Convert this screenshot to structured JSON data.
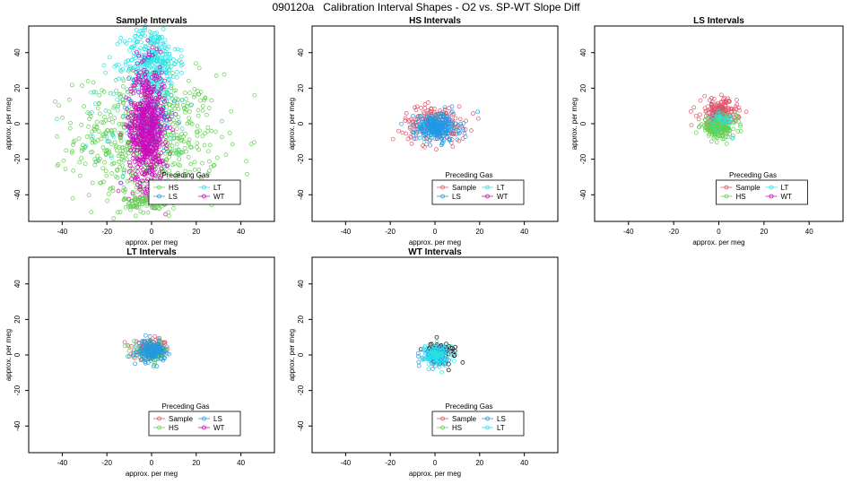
{
  "figure": {
    "title": "090120a   Calibration Interval Shapes - O2 vs. SP-WT Slope Diff"
  },
  "colors": {
    "Sample": "#DF536B",
    "HS": "#61D04F",
    "LS": "#2297E6",
    "LT": "#28E2E5",
    "WT": "#CD0BBC",
    "self": "#000000"
  },
  "chart_data": [
    {
      "type": "scatter",
      "title": "Sample Intervals",
      "xlabel": "approx. per meg",
      "ylabel": "approx. per meg",
      "xlim": [
        -55,
        55
      ],
      "ylim": [
        -55,
        55
      ],
      "xticks": [
        -40,
        -20,
        0,
        20,
        40
      ],
      "yticks": [
        -40,
        -20,
        0,
        20,
        40
      ],
      "legend": {
        "title": "Preceding Gas",
        "position": "bottom-center",
        "entries": [
          "HS",
          "LT",
          "LS",
          "WT"
        ]
      },
      "series": [
        {
          "name": "HS",
          "n": 650,
          "cx": -2,
          "cy": -8,
          "sx": 16,
          "sy": 18
        },
        {
          "name": "LS",
          "n": 80,
          "cx": 0,
          "cy": 0,
          "sx": 5,
          "sy": 8
        },
        {
          "name": "LT",
          "n": 350,
          "cx": 0,
          "cy": 35,
          "sx": 6,
          "sy": 10
        },
        {
          "name": "LT",
          "n": 60,
          "cx": -5,
          "cy": 5,
          "sx": 14,
          "sy": 18
        },
        {
          "name": "WT",
          "n": 700,
          "cx": -2,
          "cy": -2,
          "sx": 4,
          "sy": 17
        },
        {
          "name": "HS",
          "n": 120,
          "cx": 0,
          "cy": -44,
          "sx": 6,
          "sy": 3
        }
      ]
    },
    {
      "type": "scatter",
      "title": "HS Intervals",
      "xlabel": "approx. per meg",
      "ylabel": "approx. per meg",
      "xlim": [
        -55,
        55
      ],
      "ylim": [
        -55,
        55
      ],
      "xticks": [
        -40,
        -20,
        0,
        20,
        40
      ],
      "yticks": [
        -40,
        -20,
        0,
        20,
        40
      ],
      "legend": {
        "title": "Preceding Gas",
        "position": "bottom-center",
        "entries": [
          "Sample",
          "LT",
          "LS",
          "WT"
        ]
      },
      "series": [
        {
          "name": "Sample",
          "n": 220,
          "cx": 0,
          "cy": 0,
          "sx": 7,
          "sy": 5
        },
        {
          "name": "LT",
          "n": 60,
          "cx": 0,
          "cy": -2,
          "sx": 4,
          "sy": 4
        },
        {
          "name": "LS",
          "n": 220,
          "cx": 1,
          "cy": -2,
          "sx": 5,
          "sy": 4
        }
      ]
    },
    {
      "type": "scatter",
      "title": "LS Intervals",
      "xlabel": "approx. per meg",
      "ylabel": "approx. per meg",
      "xlim": [
        -55,
        55
      ],
      "ylim": [
        -55,
        55
      ],
      "xticks": [
        -40,
        -20,
        0,
        20,
        40
      ],
      "yticks": [
        -40,
        -20,
        0,
        20,
        40
      ],
      "legend": {
        "title": "Preceding Gas",
        "position": "bottom-center",
        "entries": [
          "Sample",
          "LT",
          "HS",
          "WT"
        ]
      },
      "series": [
        {
          "name": "Sample",
          "n": 220,
          "cx": 0,
          "cy": 6,
          "sx": 4,
          "sy": 4
        },
        {
          "name": "HS",
          "n": 200,
          "cx": 0,
          "cy": -2,
          "sx": 4,
          "sy": 3
        },
        {
          "name": "LT",
          "n": 30,
          "cx": 1,
          "cy": 2,
          "sx": 3,
          "sy": 3
        }
      ]
    },
    {
      "type": "scatter",
      "title": "LT Intervals",
      "xlabel": "approx. per meg",
      "ylabel": "approx. per meg",
      "xlim": [
        -55,
        55
      ],
      "ylim": [
        -55,
        55
      ],
      "xticks": [
        -40,
        -20,
        0,
        20,
        40
      ],
      "yticks": [
        -40,
        -20,
        0,
        20,
        40
      ],
      "legend": {
        "title": "Preceding Gas",
        "position": "bottom-center",
        "entries": [
          "Sample",
          "LS",
          "HS",
          "WT"
        ]
      },
      "series": [
        {
          "name": "Sample",
          "n": 120,
          "cx": 0,
          "cy": 3,
          "sx": 4,
          "sy": 2.5
        },
        {
          "name": "HS",
          "n": 120,
          "cx": 0,
          "cy": 2,
          "sx": 4,
          "sy": 2.5
        },
        {
          "name": "LS",
          "n": 150,
          "cx": 0,
          "cy": 2,
          "sx": 3,
          "sy": 3
        }
      ]
    },
    {
      "type": "scatter",
      "title": "WT Intervals",
      "xlabel": "approx. per meg",
      "ylabel": "approx. per meg",
      "xlim": [
        -55,
        55
      ],
      "ylim": [
        -55,
        55
      ],
      "xticks": [
        -40,
        -20,
        0,
        20,
        40
      ],
      "yticks": [
        -40,
        -20,
        0,
        20,
        40
      ],
      "legend": {
        "title": "Preceding Gas",
        "position": "bottom-center",
        "entries": [
          "Sample",
          "LS",
          "HS",
          "LT"
        ]
      },
      "series": [
        {
          "name": "self",
          "n": 60,
          "cx": 2,
          "cy": 2,
          "sx": 4,
          "sy": 3
        },
        {
          "name": "LS",
          "n": 100,
          "cx": 0,
          "cy": 0,
          "sx": 3,
          "sy": 2.5
        },
        {
          "name": "LT",
          "n": 100,
          "cx": 1,
          "cy": 0,
          "sx": 3,
          "sy": 3
        }
      ]
    }
  ]
}
